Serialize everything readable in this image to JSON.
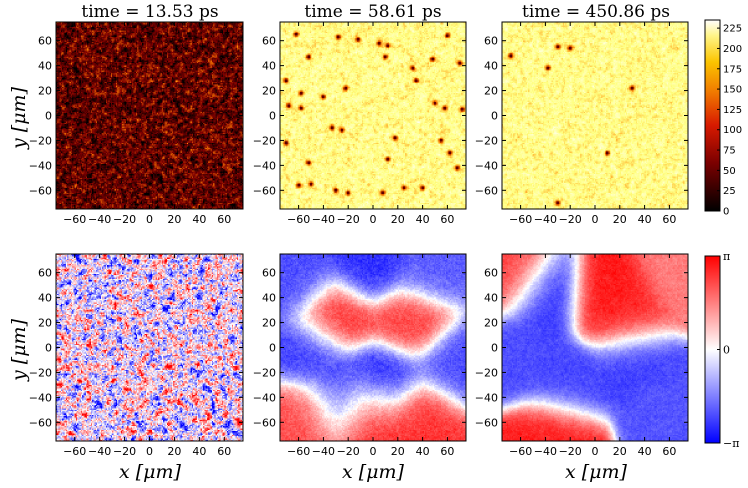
{
  "chart_data": [
    {
      "type": "heatmap",
      "panel": "density-t1",
      "title": "time = 13.53 ps",
      "quantity": "density",
      "colormap": "afmhot",
      "value_range": [
        0,
        235
      ],
      "mean_level": 45,
      "noise": 55,
      "defects": [],
      "xlim": [
        -75,
        75
      ],
      "ylim": [
        -75,
        75
      ],
      "xticks": [
        -60,
        -40,
        -20,
        0,
        20,
        40,
        60
      ],
      "yticks": [
        60,
        40,
        20,
        0,
        -20,
        -40,
        -60
      ],
      "xlabel": "",
      "ylabel": "y [μm]"
    },
    {
      "type": "heatmap",
      "panel": "density-t2",
      "title": "time = 58.61 ps",
      "quantity": "density",
      "colormap": "afmhot",
      "value_range": [
        0,
        235
      ],
      "mean_level": 180,
      "noise": 30,
      "defects": [
        [
          -62,
          65
        ],
        [
          -28,
          63
        ],
        [
          -12,
          61
        ],
        [
          5,
          58
        ],
        [
          12,
          56
        ],
        [
          60,
          64
        ],
        [
          -52,
          47
        ],
        [
          10,
          47
        ],
        [
          48,
          45
        ],
        [
          70,
          42
        ],
        [
          32,
          38
        ],
        [
          -70,
          28
        ],
        [
          -58,
          18
        ],
        [
          -40,
          15
        ],
        [
          -22,
          22
        ],
        [
          -68,
          8
        ],
        [
          -58,
          6
        ],
        [
          35,
          28
        ],
        [
          50,
          10
        ],
        [
          58,
          6
        ],
        [
          72,
          5
        ],
        [
          -33,
          -10
        ],
        [
          -25,
          -12
        ],
        [
          -70,
          -22
        ],
        [
          18,
          -18
        ],
        [
          55,
          -20
        ],
        [
          62,
          -30
        ],
        [
          -52,
          -38
        ],
        [
          12,
          -35
        ],
        [
          68,
          -42
        ],
        [
          -60,
          -56
        ],
        [
          -50,
          -55
        ],
        [
          -30,
          -60
        ],
        [
          -20,
          -62
        ],
        [
          8,
          -62
        ],
        [
          25,
          -58
        ],
        [
          40,
          -58
        ]
      ],
      "xlim": [
        -75,
        75
      ],
      "ylim": [
        -75,
        75
      ],
      "xticks": [
        -60,
        -40,
        -20,
        0,
        20,
        40,
        60
      ],
      "yticks": [
        60,
        40,
        20,
        0,
        -20,
        -40,
        -60
      ],
      "xlabel": "",
      "ylabel": ""
    },
    {
      "type": "heatmap",
      "panel": "density-t3",
      "title": "time = 450.86 ps",
      "quantity": "density",
      "colormap": "afmhot",
      "value_range": [
        0,
        235
      ],
      "mean_level": 180,
      "noise": 28,
      "defects": [
        [
          -30,
          55
        ],
        [
          -20,
          54
        ],
        [
          -68,
          48
        ],
        [
          -38,
          38
        ],
        [
          30,
          22
        ],
        [
          10,
          -30
        ],
        [
          -30,
          -70
        ]
      ],
      "xlim": [
        -75,
        75
      ],
      "ylim": [
        -75,
        75
      ],
      "xticks": [
        -60,
        -40,
        -20,
        0,
        20,
        40,
        60
      ],
      "yticks": [
        60,
        40,
        20,
        0,
        -20,
        -40,
        -60
      ],
      "xlabel": "",
      "ylabel": ""
    },
    {
      "type": "heatmap",
      "panel": "phase-t1",
      "title": "",
      "quantity": "phase",
      "colormap": "bwr",
      "value_range": [
        -3.1416,
        3.1416
      ],
      "phase_noise": 2.8,
      "domains": [],
      "xlim": [
        -75,
        75
      ],
      "ylim": [
        -75,
        75
      ],
      "xticks": [
        -60,
        -40,
        -20,
        0,
        20,
        40,
        60
      ],
      "yticks": [
        60,
        40,
        20,
        0,
        -20,
        -40,
        -60
      ],
      "xlabel": "x [μm]",
      "ylabel": "y [μm]"
    },
    {
      "type": "heatmap",
      "panel": "phase-t2",
      "title": "",
      "quantity": "phase",
      "colormap": "bwr",
      "value_range": [
        -3.1416,
        3.1416
      ],
      "phase_noise": 0.5,
      "domains": [
        [
          -30,
          25,
          2.6
        ],
        [
          30,
          20,
          2.4
        ],
        [
          -5,
          -55,
          2.7
        ],
        [
          40,
          -55,
          2.5
        ],
        [
          -55,
          -55,
          2.2
        ],
        [
          -5,
          65,
          -2.6
        ],
        [
          -60,
          55,
          -2.2
        ],
        [
          -50,
          -5,
          -2.4
        ],
        [
          10,
          -25,
          -2.7
        ],
        [
          65,
          -15,
          -2.2
        ],
        [
          45,
          62,
          -2.0
        ],
        [
          -25,
          -40,
          -2.4
        ]
      ],
      "xlim": [
        -75,
        75
      ],
      "ylim": [
        -75,
        75
      ],
      "xticks": [
        -60,
        -40,
        -20,
        0,
        20,
        40,
        60
      ],
      "yticks": [
        60,
        40,
        20,
        0,
        -20,
        -40,
        -60
      ],
      "xlabel": "x [μm]",
      "ylabel": ""
    },
    {
      "type": "heatmap",
      "panel": "phase-t3",
      "title": "",
      "quantity": "phase",
      "colormap": "bwr",
      "value_range": [
        -3.1416,
        3.1416
      ],
      "phase_noise": 0.35,
      "domains": [
        [
          10,
          38,
          2.9
        ],
        [
          25,
          25,
          2.6
        ],
        [
          -30,
          -70,
          2.8
        ],
        [
          -66,
          58,
          2.4
        ],
        [
          70,
          58,
          1.6
        ],
        [
          -40,
          40,
          -2.6
        ],
        [
          30,
          -10,
          -2.4
        ],
        [
          -20,
          -30,
          -2.3
        ],
        [
          -55,
          -5,
          -2.2
        ],
        [
          55,
          -50,
          -2.1
        ]
      ],
      "xlim": [
        -75,
        75
      ],
      "ylim": [
        -75,
        75
      ],
      "xticks": [
        -60,
        -40,
        -20,
        0,
        20,
        40,
        60
      ],
      "yticks": [
        60,
        40,
        20,
        0,
        -20,
        -40,
        -60
      ],
      "xlabel": "x [μm]",
      "ylabel": ""
    }
  ],
  "colorbars": {
    "density": {
      "ticks": [
        "225",
        "200",
        "175",
        "150",
        "125",
        "100",
        "75",
        "50",
        "25",
        "0"
      ],
      "values": [
        225,
        200,
        175,
        150,
        125,
        100,
        75,
        50,
        25,
        0
      ],
      "range": [
        0,
        235
      ]
    },
    "phase": {
      "ticks": [
        "π",
        "0",
        "−π"
      ],
      "values": [
        3.1416,
        0,
        -3.1416
      ],
      "range": [
        -3.1416,
        3.1416
      ]
    }
  }
}
